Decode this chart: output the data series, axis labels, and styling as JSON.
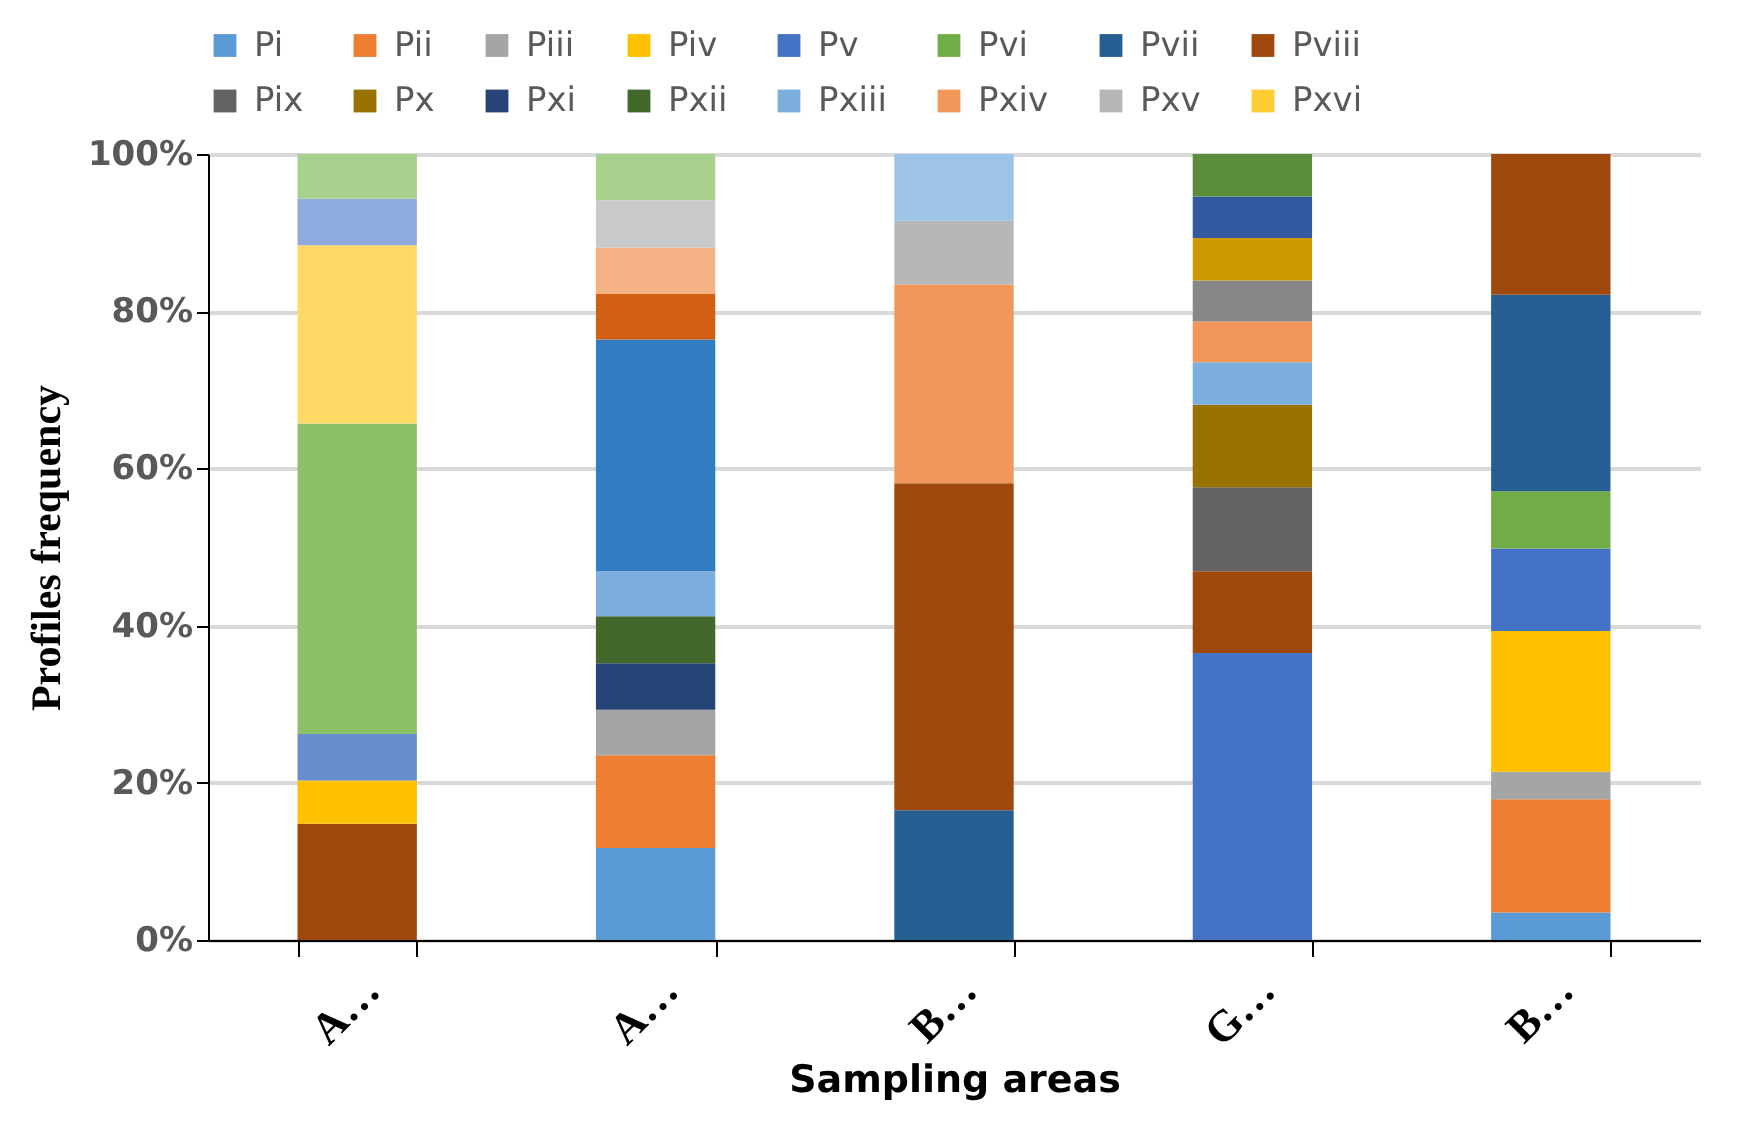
{
  "chart_data": {
    "type": "bar",
    "stacked": true,
    "xlabel": "Sampling areas",
    "ylabel": "Profiles frequency",
    "categories": [
      "A…",
      "A…",
      "B…",
      "G…",
      "B…"
    ],
    "ylim": [
      0,
      100
    ],
    "yticks": [
      {
        "value": 0,
        "label": "0%"
      },
      {
        "value": 20,
        "label": "20%"
      },
      {
        "value": 40,
        "label": "40%"
      },
      {
        "value": 60,
        "label": "60%"
      },
      {
        "value": 80,
        "label": "80%"
      },
      {
        "value": 100,
        "label": "100%"
      }
    ],
    "grid": "y",
    "legend": "top",
    "series": [
      {
        "color": "#9e480e",
        "values": [
          14.8,
          null,
          null,
          null,
          null
        ]
      },
      {
        "name": "Pi",
        "color": "#5b9bd5",
        "values": [
          null,
          11.7,
          null,
          null,
          3.5
        ]
      },
      {
        "name": "Pii",
        "color": "#ed7d31",
        "values": [
          null,
          11.8,
          null,
          null,
          14.4
        ]
      },
      {
        "name": "Piii",
        "color": "#a5a5a5",
        "values": [
          null,
          5.8,
          null,
          null,
          3.5
        ]
      },
      {
        "name": "Piv",
        "color": "#ffc000",
        "values": [
          5.5,
          null,
          null,
          null,
          17.9
        ]
      },
      {
        "name": "Pv",
        "color": "#4472c4",
        "values": [
          null,
          null,
          null,
          36.5,
          10.5
        ]
      },
      {
        "name": "Pvi",
        "color": "#70ad47",
        "values": [
          null,
          null,
          null,
          null,
          7.3
        ]
      },
      {
        "name": "Pvii",
        "color": "#255e91",
        "values": [
          null,
          null,
          16.5,
          null,
          25.0
        ]
      },
      {
        "name": "Pviii",
        "color": "#9e480e",
        "values": [
          null,
          null,
          41.6,
          10.4,
          17.9
        ]
      },
      {
        "name": "Pix",
        "color": "#636363",
        "values": [
          null,
          null,
          null,
          10.7,
          null
        ]
      },
      {
        "name": "Px",
        "color": "#997300",
        "values": [
          null,
          null,
          null,
          10.5,
          null
        ]
      },
      {
        "name": "Pxi",
        "color": "#264478",
        "values": [
          null,
          5.9,
          null,
          null,
          null
        ]
      },
      {
        "name": "Pxii",
        "color": "#43682b",
        "values": [
          null,
          6.0,
          null,
          null,
          null
        ]
      },
      {
        "name": "Pxiii",
        "color": "#7cafdd",
        "values": [
          null,
          5.7,
          null,
          5.4,
          null
        ]
      },
      {
        "name": "Pxiv",
        "color": "#f1975a",
        "values": [
          null,
          null,
          25.3,
          5.2,
          null
        ]
      },
      {
        "name": "Pxv",
        "color": "#b7b7b7",
        "values": [
          null,
          null,
          8.1,
          null,
          null
        ]
      },
      {
        "name": "Pxvi",
        "color": "#ffcd33",
        "values": [
          null,
          null,
          null,
          null,
          null
        ]
      },
      {
        "color": "#698ed0",
        "values": [
          5.9,
          null,
          null,
          null,
          null
        ]
      },
      {
        "color": "#8cc168",
        "values": [
          39.5,
          null,
          null,
          null,
          null
        ]
      },
      {
        "color": "#327dc2",
        "values": [
          null,
          29.5,
          null,
          null,
          null
        ]
      },
      {
        "color": "#d26012",
        "values": [
          null,
          5.8,
          null,
          null,
          null
        ]
      },
      {
        "color": "#9dc3e6",
        "values": [
          null,
          null,
          8.5,
          null,
          null
        ]
      },
      {
        "color": "#f4b183",
        "values": [
          null,
          5.9,
          null,
          null,
          null
        ]
      },
      {
        "color": "#c9c9c9",
        "values": [
          null,
          6.0,
          null,
          null,
          null
        ]
      },
      {
        "color": "#ffd966",
        "values": [
          22.7,
          null,
          null,
          null,
          null
        ]
      },
      {
        "color": "#8faadc",
        "values": [
          5.9,
          null,
          null,
          null,
          null
        ]
      },
      {
        "color": "#a9d18e",
        "values": [
          5.7,
          5.9,
          null,
          null,
          null
        ]
      },
      {
        "color": "#878787",
        "values": [
          null,
          null,
          null,
          5.2,
          null
        ]
      },
      {
        "color": "#cc9a00",
        "values": [
          null,
          null,
          null,
          5.4,
          null
        ]
      },
      {
        "color": "#335aa1",
        "values": [
          null,
          null,
          null,
          5.3,
          null
        ]
      },
      {
        "color": "#5b8c3a",
        "values": [
          null,
          null,
          null,
          5.4,
          null
        ]
      }
    ]
  }
}
